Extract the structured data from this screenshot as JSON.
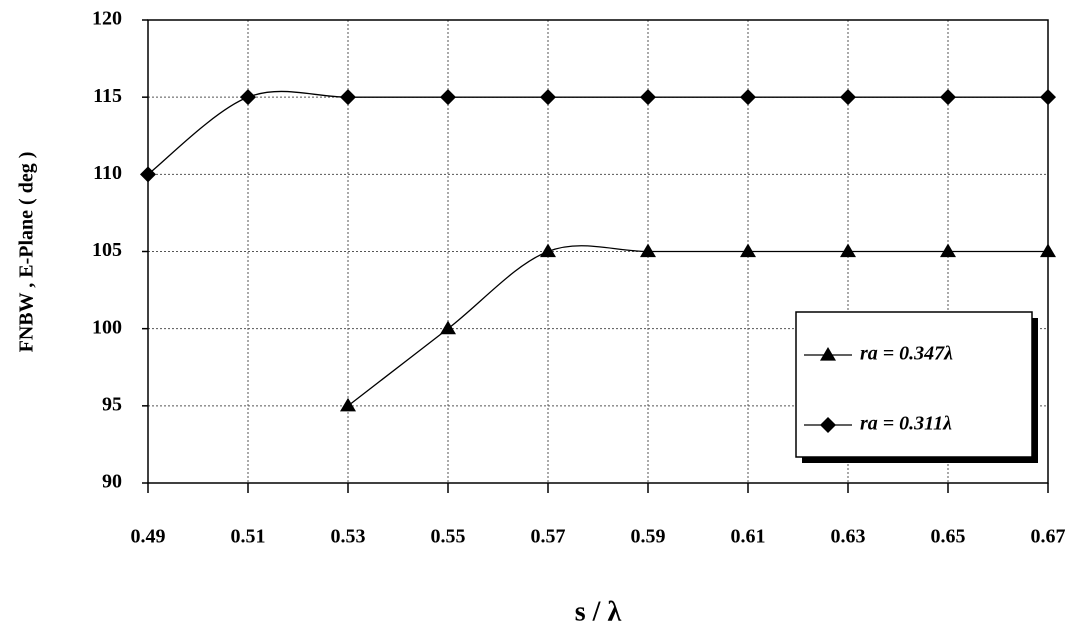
{
  "chart_data": {
    "type": "line",
    "x_label": "s / λ",
    "y_label": "FNBW , E-Plane ( deg )",
    "xlim": [
      0.49,
      0.67
    ],
    "xticks": [
      0.49,
      0.51,
      0.53,
      0.55,
      0.57,
      0.59,
      0.61,
      0.63,
      0.65,
      0.67
    ],
    "ylim": [
      90,
      120
    ],
    "yticks": [
      90,
      95,
      100,
      105,
      110,
      115,
      120
    ],
    "grid": true,
    "smooth": true,
    "legend_position": "right",
    "series": [
      {
        "name": "ra = 0.347λ",
        "color": "#000000",
        "marker": "triangle",
        "x": [
          0.53,
          0.55,
          0.57,
          0.59,
          0.61,
          0.63,
          0.65,
          0.67
        ],
        "values": [
          95,
          100,
          105,
          105,
          105,
          105,
          105,
          105
        ]
      },
      {
        "name": "ra = 0.311λ",
        "color": "#000000",
        "marker": "diamond",
        "x": [
          0.49,
          0.51,
          0.53,
          0.55,
          0.57,
          0.59,
          0.61,
          0.63,
          0.65,
          0.67
        ],
        "values": [
          110,
          115,
          115,
          115,
          115,
          115,
          115,
          115,
          115,
          115
        ]
      }
    ]
  }
}
